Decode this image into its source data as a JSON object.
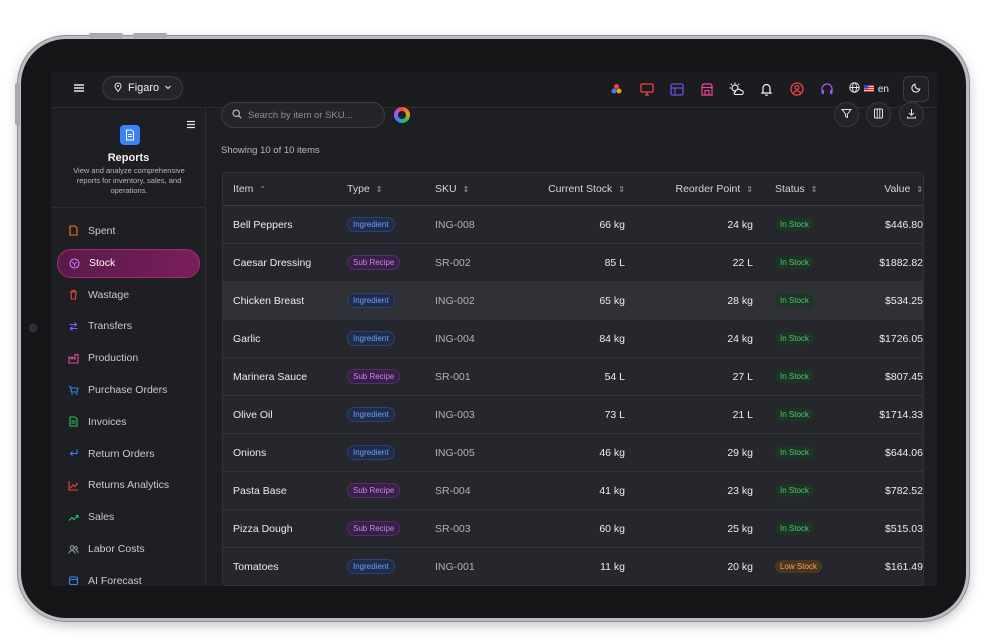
{
  "topbar": {
    "location": "Figaro",
    "language": "en",
    "colors": {
      "accent": "#9c2f78",
      "bg": "#1b1c20"
    }
  },
  "sidebar": {
    "title": "Reports",
    "description": "View and analyze comprehensive reports for inventory, sales, and operations.",
    "items": [
      {
        "label": "Spent",
        "icon": "file-icon",
        "color": "#f97316"
      },
      {
        "label": "Stock",
        "icon": "package-icon",
        "color": "#c084fc",
        "active": true
      },
      {
        "label": "Wastage",
        "icon": "trash-icon",
        "color": "#ef4444"
      },
      {
        "label": "Transfers",
        "icon": "transfer-icon",
        "color": "#8b5cf6"
      },
      {
        "label": "Production",
        "icon": "factory-icon",
        "color": "#ec4899"
      },
      {
        "label": "Purchase Orders",
        "icon": "cart-icon",
        "color": "#3b82f6"
      },
      {
        "label": "Invoices",
        "icon": "invoice-icon",
        "color": "#22c55e"
      },
      {
        "label": "Return Orders",
        "icon": "return-icon",
        "color": "#3b82f6"
      },
      {
        "label": "Returns Analytics",
        "icon": "chart-icon",
        "color": "#ef4444"
      },
      {
        "label": "Sales",
        "icon": "trend-icon",
        "color": "#22c55e"
      },
      {
        "label": "Labor Costs",
        "icon": "users-icon",
        "color": "#9ca3af"
      },
      {
        "label": "AI Forecast",
        "icon": "forecast-icon",
        "color": "#3b82f6"
      }
    ]
  },
  "main": {
    "search_placeholder": "Search by item or SKU...",
    "showing": "Showing 10 of 10 items",
    "columns": [
      "Item",
      "Type",
      "SKU",
      "Current Stock",
      "Reorder Point",
      "Status",
      "Value"
    ],
    "rows": [
      {
        "item": "Bell Peppers",
        "type": "Ingredient",
        "sku": "ING-008",
        "current": "66 kg",
        "reorder": "24 kg",
        "status": "In Stock",
        "value": "$446.80"
      },
      {
        "item": "Caesar Dressing",
        "type": "Sub Recipe",
        "sku": "SR-002",
        "current": "85 L",
        "reorder": "22 L",
        "status": "In Stock",
        "value": "$1882.82"
      },
      {
        "item": "Chicken Breast",
        "type": "Ingredient",
        "sku": "ING-002",
        "current": "65 kg",
        "reorder": "28 kg",
        "status": "In Stock",
        "value": "$534.25"
      },
      {
        "item": "Garlic",
        "type": "Ingredient",
        "sku": "ING-004",
        "current": "84 kg",
        "reorder": "24 kg",
        "status": "In Stock",
        "value": "$1726.05"
      },
      {
        "item": "Marinera Sauce",
        "type": "Sub Recipe",
        "sku": "SR-001",
        "current": "54 L",
        "reorder": "27 L",
        "status": "In Stock",
        "value": "$807.45"
      },
      {
        "item": "Olive Oil",
        "type": "Ingredient",
        "sku": "ING-003",
        "current": "73 L",
        "reorder": "21 L",
        "status": "In Stock",
        "value": "$1714.33"
      },
      {
        "item": "Onions",
        "type": "Ingredient",
        "sku": "ING-005",
        "current": "46 kg",
        "reorder": "29 kg",
        "status": "In Stock",
        "value": "$644.06"
      },
      {
        "item": "Pasta Base",
        "type": "Sub Recipe",
        "sku": "SR-004",
        "current": "41 kg",
        "reorder": "23 kg",
        "status": "In Stock",
        "value": "$782.52"
      },
      {
        "item": "Pizza Dough",
        "type": "Sub Recipe",
        "sku": "SR-003",
        "current": "60 kg",
        "reorder": "25 kg",
        "status": "In Stock",
        "value": "$515.03"
      },
      {
        "item": "Tomatoes",
        "type": "Ingredient",
        "sku": "ING-001",
        "current": "11 kg",
        "reorder": "20 kg",
        "status": "Low Stock",
        "value": "$161.49"
      }
    ]
  }
}
